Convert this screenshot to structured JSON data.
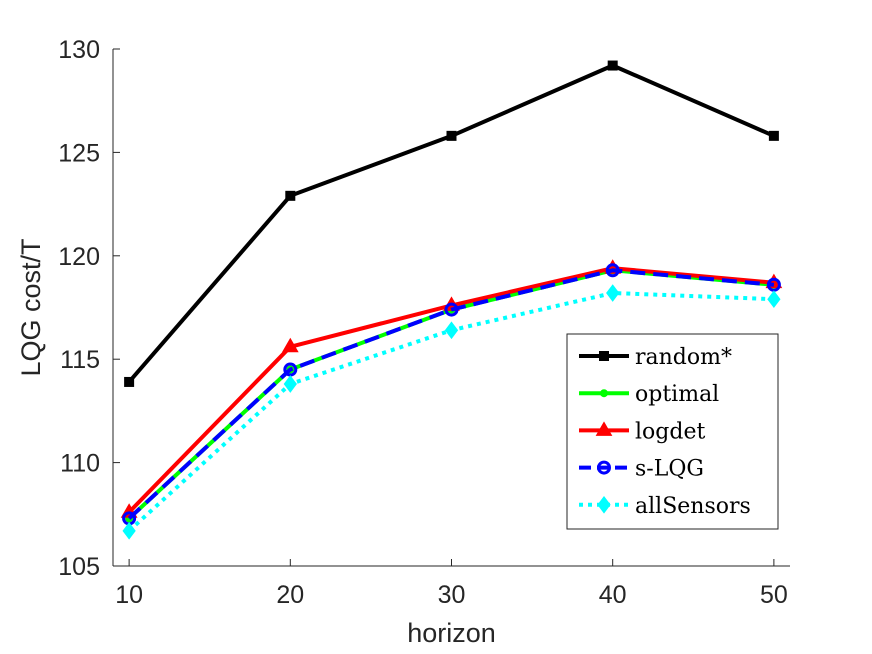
{
  "chart_data": {
    "type": "line",
    "title": "",
    "xlabel": "horizon",
    "ylabel": "LQG cost/T",
    "x": [
      10,
      20,
      30,
      40,
      50
    ],
    "xlim": [
      9,
      51
    ],
    "ylim": [
      105,
      130
    ],
    "xticks": [
      "10",
      "20",
      "30",
      "40",
      "50"
    ],
    "yticks": [
      "105",
      "110",
      "115",
      "120",
      "125",
      "130"
    ],
    "grid": false,
    "legend_position": "bottom-right",
    "series": [
      {
        "name": "random*",
        "values": [
          113.9,
          122.9,
          125.8,
          129.2,
          125.8
        ],
        "color": "#000000",
        "dash": "solid",
        "marker": "square"
      },
      {
        "name": "optimal",
        "values": [
          107.3,
          114.5,
          117.4,
          119.3,
          118.6
        ],
        "color": "#00ff00",
        "dash": "solid",
        "marker": "dot"
      },
      {
        "name": "logdet",
        "values": [
          107.6,
          115.6,
          117.6,
          119.4,
          118.7
        ],
        "color": "#ff0000",
        "dash": "solid",
        "marker": "triangle"
      },
      {
        "name": "s-LQG",
        "values": [
          107.3,
          114.5,
          117.4,
          119.3,
          118.6
        ],
        "color": "#0000ff",
        "dash": "dashed",
        "marker": "circle"
      },
      {
        "name": "allSensors",
        "values": [
          106.7,
          113.8,
          116.4,
          118.2,
          117.9
        ],
        "color": "#00ffff",
        "dash": "dotted",
        "marker": "diamond"
      }
    ]
  }
}
